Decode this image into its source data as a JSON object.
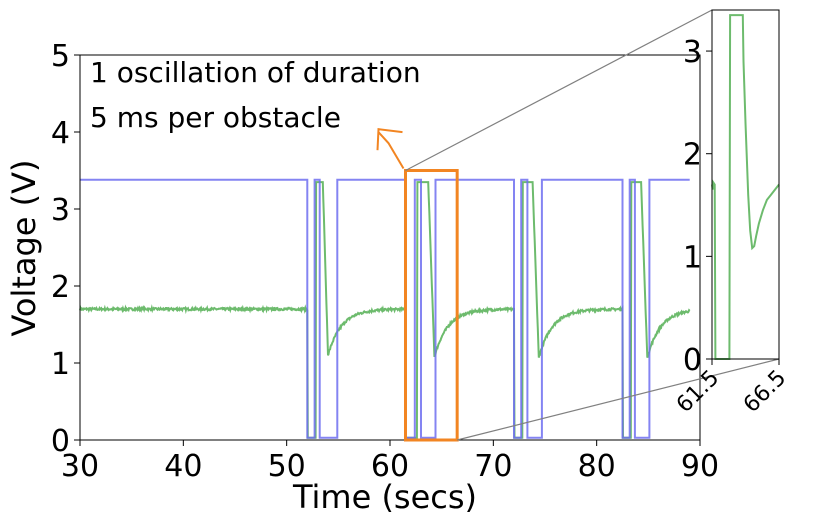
{
  "chart_data": [
    {
      "type": "line",
      "title": "",
      "xlabel": "Time (secs)",
      "ylabel": "Voltage (V)",
      "xlim": [
        30,
        90
      ],
      "ylim": [
        0,
        5
      ],
      "x_ticks": [
        "30",
        "40",
        "50",
        "60",
        "70",
        "80",
        "90"
      ],
      "y_ticks": [
        "0",
        "1",
        "2",
        "3",
        "4",
        "5"
      ],
      "grid": false,
      "legend": "none",
      "annotation_lines": [
        "1 oscillation of duration",
        "5 ms per obstacle"
      ],
      "highlight_box": {
        "x": [
          61.5,
          66.5
        ],
        "y": [
          0,
          3.5
        ],
        "color": "#f28522"
      },
      "series_colors": {
        "signal_a": "#6e6ef0",
        "signal_b": "#6dbb6d"
      },
      "signal_a_high": 3.38,
      "signal_a_low": 0.03,
      "signal_a_low_intervals": [
        [
          52.0,
          52.7
        ],
        [
          53.2,
          54.9
        ],
        [
          61.5,
          62.4
        ],
        [
          63.0,
          64.4
        ],
        [
          72.0,
          72.7
        ],
        [
          73.3,
          74.7
        ],
        [
          82.5,
          83.2
        ],
        [
          83.7,
          85.1
        ]
      ],
      "signal_b_baseline": 1.7,
      "signal_b_events": [
        {
          "drop": 52.0,
          "rise": 52.8,
          "fall": 53.5,
          "min_x": 54.0,
          "min_y": 1.1
        },
        {
          "drop": 61.5,
          "rise": 62.6,
          "fall": 63.7,
          "min_x": 64.3,
          "min_y": 1.08
        },
        {
          "drop": 72.0,
          "rise": 72.8,
          "fall": 73.8,
          "min_x": 74.4,
          "min_y": 1.07
        },
        {
          "drop": 82.5,
          "rise": 83.3,
          "fall": 84.3,
          "min_x": 84.9,
          "min_y": 1.07
        }
      ]
    },
    {
      "type": "line",
      "title": "",
      "xlabel": "",
      "ylabel": "",
      "xlim": [
        61.5,
        66.5
      ],
      "ylim": [
        0,
        3.4
      ],
      "x_ticks": [
        "61.5",
        "66.5"
      ],
      "y_ticks": [
        "0",
        "1",
        "2",
        "3"
      ],
      "series_color": "#6dbb6d",
      "points": [
        [
          61.5,
          1.7
        ],
        [
          61.55,
          1.65
        ],
        [
          61.6,
          1.72
        ],
        [
          61.7,
          1.7
        ],
        [
          61.75,
          0.0
        ],
        [
          62.8,
          0.0
        ],
        [
          62.85,
          3.35
        ],
        [
          63.8,
          3.35
        ],
        [
          63.85,
          2.9
        ],
        [
          64.0,
          2.3
        ],
        [
          64.2,
          1.6
        ],
        [
          64.35,
          1.25
        ],
        [
          64.5,
          1.08
        ],
        [
          64.65,
          1.1
        ],
        [
          64.8,
          1.2
        ],
        [
          65.0,
          1.32
        ],
        [
          65.3,
          1.45
        ],
        [
          65.6,
          1.55
        ],
        [
          65.9,
          1.6
        ],
        [
          66.2,
          1.65
        ],
        [
          66.5,
          1.7
        ]
      ]
    }
  ]
}
